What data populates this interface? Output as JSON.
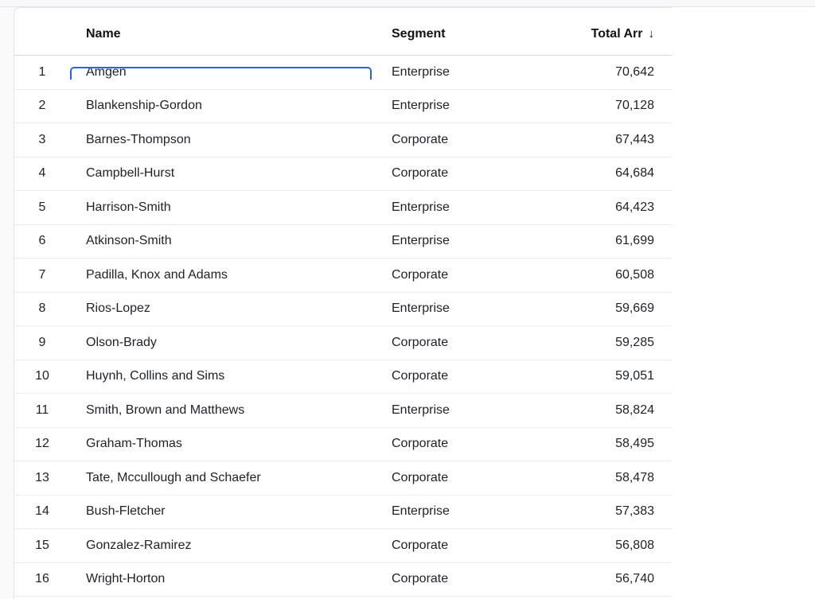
{
  "table": {
    "columns": [
      {
        "id": "name",
        "label": "Name"
      },
      {
        "id": "segment",
        "label": "Segment"
      },
      {
        "id": "total_arr",
        "label": "Total Arr",
        "sort": "desc",
        "sort_icon": "↓"
      }
    ],
    "selected_cell": {
      "row_index": 0,
      "column": "name"
    },
    "rows": [
      {
        "num": "1",
        "name": "Amgen",
        "segment": "Enterprise",
        "total_arr": "70,642"
      },
      {
        "num": "2",
        "name": "Blankenship-Gordon",
        "segment": "Enterprise",
        "total_arr": "70,128"
      },
      {
        "num": "3",
        "name": "Barnes-Thompson",
        "segment": "Corporate",
        "total_arr": "67,443"
      },
      {
        "num": "4",
        "name": "Campbell-Hurst",
        "segment": "Corporate",
        "total_arr": "64,684"
      },
      {
        "num": "5",
        "name": "Harrison-Smith",
        "segment": "Enterprise",
        "total_arr": "64,423"
      },
      {
        "num": "6",
        "name": "Atkinson-Smith",
        "segment": "Enterprise",
        "total_arr": "61,699"
      },
      {
        "num": "7",
        "name": "Padilla, Knox and Adams",
        "segment": "Corporate",
        "total_arr": "60,508"
      },
      {
        "num": "8",
        "name": "Rios-Lopez",
        "segment": "Enterprise",
        "total_arr": "59,669"
      },
      {
        "num": "9",
        "name": "Olson-Brady",
        "segment": "Corporate",
        "total_arr": "59,285"
      },
      {
        "num": "10",
        "name": "Huynh, Collins and Sims",
        "segment": "Corporate",
        "total_arr": "59,051"
      },
      {
        "num": "11",
        "name": "Smith, Brown and Matthews",
        "segment": "Enterprise",
        "total_arr": "58,824"
      },
      {
        "num": "12",
        "name": "Graham-Thomas",
        "segment": "Corporate",
        "total_arr": "58,495"
      },
      {
        "num": "13",
        "name": "Tate, Mccullough and Schaefer",
        "segment": "Corporate",
        "total_arr": "58,478"
      },
      {
        "num": "14",
        "name": "Bush-Fletcher",
        "segment": "Enterprise",
        "total_arr": "57,383"
      },
      {
        "num": "15",
        "name": "Gonzalez-Ramirez",
        "segment": "Corporate",
        "total_arr": "56,808"
      },
      {
        "num": "16",
        "name": "Wright-Horton",
        "segment": "Corporate",
        "total_arr": "56,740"
      }
    ]
  },
  "colors": {
    "accent": "#2563eb",
    "row-line": "#e9edf2",
    "header-line": "#d6d9de",
    "card-border": "#e3e5e9",
    "text-dark": "#1d2127",
    "text-muted": "#9aa0a8"
  }
}
